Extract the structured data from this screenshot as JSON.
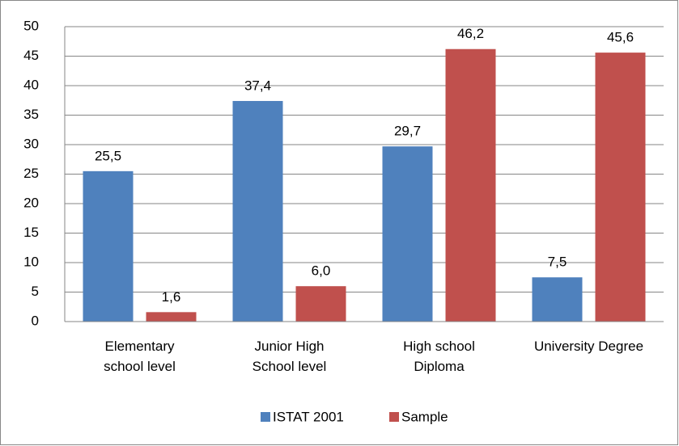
{
  "chart_data": {
    "type": "bar",
    "categories": [
      "Elementary\nschool level",
      "Junior High\nSchool level",
      "High school\nDiploma",
      "University Degree"
    ],
    "series": [
      {
        "name": "ISTAT 2001",
        "color": "#4f81bd",
        "values": [
          25.5,
          37.4,
          29.7,
          7.5
        ],
        "value_labels": [
          "25,5",
          "37,4",
          "29,7",
          "7,5"
        ]
      },
      {
        "name": "Sample",
        "color": "#c0504d",
        "values": [
          1.6,
          6.0,
          46.2,
          45.6
        ],
        "value_labels": [
          "1,6",
          "6,0",
          "46,2",
          "45,6"
        ]
      }
    ],
    "ylim": [
      0,
      50
    ],
    "yticks": [
      0,
      5,
      10,
      15,
      20,
      25,
      30,
      35,
      40,
      45,
      50
    ],
    "grid": true,
    "legend": "bottom"
  }
}
